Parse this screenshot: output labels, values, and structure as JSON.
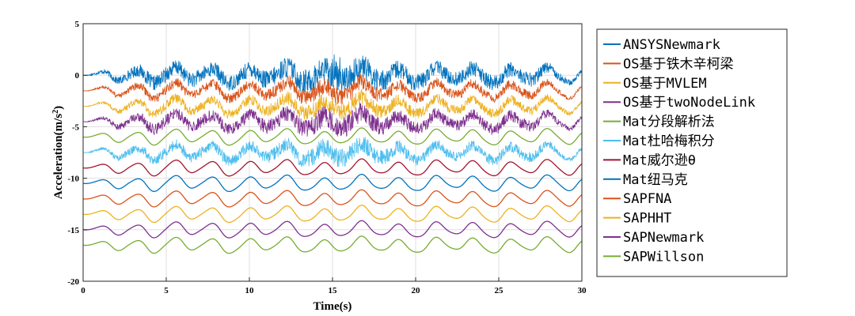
{
  "chart_data": {
    "type": "line",
    "xlabel": "Time(s)",
    "ylabel": "Acceleration(m/s",
    "ylabel_sup": "2",
    "ylabel_tail": ")",
    "xlim": [
      0,
      30
    ],
    "ylim": [
      -20,
      5
    ],
    "xticks": [
      "0",
      "5",
      "10",
      "15",
      "20",
      "25",
      "30"
    ],
    "yticks": [
      "5",
      "0",
      "-5",
      "-10",
      "-15",
      "-20"
    ],
    "grid": true,
    "legend_position": "right-outside",
    "series": [
      {
        "name": "ANSYSNewmark",
        "offset": 0.0,
        "color": "#0072bd",
        "noise": 1.35
      },
      {
        "name": "OS基于铁木辛柯梁",
        "offset": -1.5,
        "color": "#d95319",
        "noise": 0.85
      },
      {
        "name": "OS基于MVLEM",
        "offset": -3.0,
        "color": "#edb120",
        "noise": 0.85
      },
      {
        "name": "OS基于twoNodeLink",
        "offset": -4.5,
        "color": "#7e2f8e",
        "noise": 1.05
      },
      {
        "name": "Mat分段解析法",
        "offset": -6.0,
        "color": "#77ac30",
        "noise": 0.0
      },
      {
        "name": "Mat杜哈梅积分",
        "offset": -7.5,
        "color": "#4dbeee",
        "noise": 0.95
      },
      {
        "name": "Mat威尔逊θ",
        "offset": -9.0,
        "color": "#a2142f",
        "noise": 0.0
      },
      {
        "name": "Mat纽马克",
        "offset": -10.5,
        "color": "#0072bd",
        "noise": 0.0
      },
      {
        "name": "SAPFNA",
        "offset": -12.0,
        "color": "#d95319",
        "noise": 0.0
      },
      {
        "name": "SAPHHT",
        "offset": -13.5,
        "color": "#edb120",
        "noise": 0.0
      },
      {
        "name": "SAPNewmark",
        "offset": -15.0,
        "color": "#7e2f8e",
        "noise": 0.0
      },
      {
        "name": "SAPWillson",
        "offset": -16.5,
        "color": "#77ac30",
        "noise": 0.0
      }
    ]
  }
}
